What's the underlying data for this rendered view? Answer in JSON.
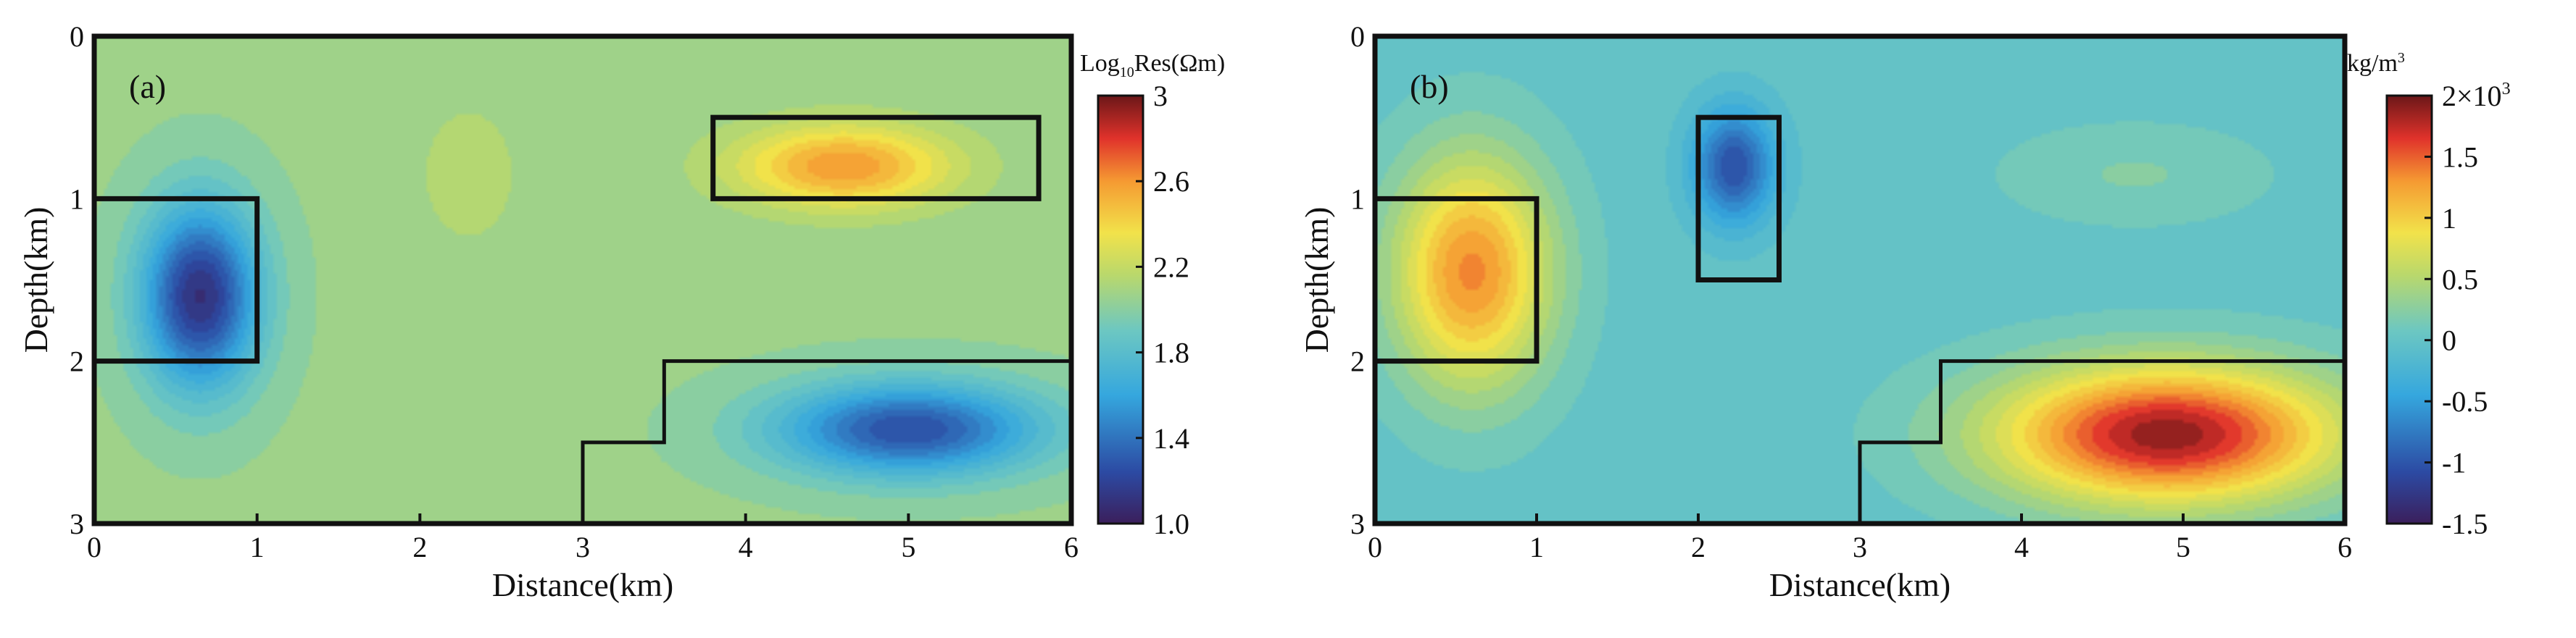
{
  "chart_data": [
    {
      "type": "heatmap",
      "panel_label": "(a)",
      "xlabel": "Distance(km)",
      "ylabel": "Depth(km)",
      "xlim": [
        0,
        6
      ],
      "ylim": [
        0,
        3
      ],
      "x_ticks": [
        0,
        1,
        2,
        3,
        4,
        5,
        6
      ],
      "x_tick_labels": [
        "0",
        "1",
        "2",
        "3",
        "4",
        "5",
        "6"
      ],
      "y_ticks": [
        0,
        1,
        2,
        3
      ],
      "y_tick_labels": [
        "0",
        "1",
        "2",
        "3"
      ],
      "y_inverted": true,
      "colorbar": {
        "title_prefix": "Log",
        "title_sub": "10",
        "title_suffix": "Res(Ωm)",
        "range": [
          1.0,
          3.0
        ],
        "ticks": [
          3,
          2.6,
          2.2,
          1.8,
          1.4,
          1.0
        ],
        "tick_labels": [
          "3",
          "2.6",
          "2.2",
          "1.8",
          "1.4",
          "1.0"
        ],
        "colormap": "jet"
      },
      "background_value": 2.05,
      "anomalies": [
        {
          "name": "conductive-body-left",
          "cx": 0.65,
          "cy": 1.6,
          "sx": 0.35,
          "sy": 0.55,
          "amplitude": -0.95
        },
        {
          "name": "resistive-body-upper",
          "cx": 4.6,
          "cy": 0.8,
          "sx": 0.65,
          "sy": 0.25,
          "amplitude": 0.55
        },
        {
          "name": "conductive-body-lower",
          "cx": 5.0,
          "cy": 2.42,
          "sx": 0.8,
          "sy": 0.28,
          "amplitude": -0.8
        },
        {
          "name": "mild-high-center",
          "cx": 2.3,
          "cy": 0.85,
          "sx": 0.35,
          "sy": 0.5,
          "amplitude": 0.1
        }
      ],
      "model_outlines": [
        {
          "name": "left-block",
          "points": [
            [
              0,
              1
            ],
            [
              1,
              1
            ],
            [
              1,
              2
            ],
            [
              0,
              2
            ]
          ],
          "closed": false
        },
        {
          "name": "upper-right-block",
          "points": [
            [
              3.8,
              0.5
            ],
            [
              5.8,
              0.5
            ],
            [
              5.8,
              1.0
            ],
            [
              3.8,
              1.0
            ]
          ],
          "closed": true
        },
        {
          "name": "stepped-body",
          "points": [
            [
              3,
              3
            ],
            [
              3,
              2.5
            ],
            [
              3.5,
              2.5
            ],
            [
              3.5,
              2.0
            ],
            [
              6,
              2.0
            ]
          ],
          "closed": false
        }
      ]
    },
    {
      "type": "heatmap",
      "panel_label": "(b)",
      "xlabel": "Distance(km)",
      "ylabel": "Depth(km)",
      "xlim": [
        0,
        6
      ],
      "ylim": [
        0,
        3
      ],
      "x_ticks": [
        0,
        1,
        2,
        3,
        4,
        5,
        6
      ],
      "x_tick_labels": [
        "0",
        "1",
        "2",
        "3",
        "4",
        "5",
        "6"
      ],
      "y_ticks": [
        0,
        1,
        2,
        3
      ],
      "y_tick_labels": [
        "0",
        "1",
        "2",
        "3"
      ],
      "y_inverted": true,
      "colorbar": {
        "unit_base": "kg/m",
        "unit_sup": "3",
        "range": [
          -1.5,
          2.0
        ],
        "ticks": [
          2,
          1.5,
          1,
          0.5,
          0,
          -0.5,
          -1,
          -1.5
        ],
        "tick_labels": [
          "2×10",
          "1.5",
          "1",
          "0.5",
          "0",
          "-0.5",
          "-1",
          "-1.5"
        ],
        "top_label_sup": "3",
        "colormap": "jet"
      },
      "background_value": 0.0,
      "anomalies": [
        {
          "name": "dense-body-left",
          "cx": 0.6,
          "cy": 1.45,
          "sx": 0.48,
          "sy": 0.7,
          "amplitude": 1.35
        },
        {
          "name": "light-body-top",
          "cx": 2.22,
          "cy": 0.8,
          "sx": 0.25,
          "sy": 0.35,
          "amplitude": -1.05
        },
        {
          "name": "dense-body-lower",
          "cx": 4.9,
          "cy": 2.45,
          "sx": 1.05,
          "sy": 0.42,
          "amplitude": 1.9
        },
        {
          "name": "mild-high-right",
          "cx": 4.7,
          "cy": 0.85,
          "sx": 0.8,
          "sy": 0.3,
          "amplitude": 0.2
        }
      ],
      "model_outlines": [
        {
          "name": "left-block",
          "points": [
            [
              0,
              1
            ],
            [
              1,
              1
            ],
            [
              1,
              2
            ],
            [
              0,
              2
            ]
          ],
          "closed": false
        },
        {
          "name": "upper-small-block",
          "points": [
            [
              2.0,
              0.5
            ],
            [
              2.5,
              0.5
            ],
            [
              2.5,
              1.5
            ],
            [
              2.0,
              1.5
            ]
          ],
          "closed": true
        },
        {
          "name": "stepped-body",
          "points": [
            [
              3,
              3
            ],
            [
              3,
              2.5
            ],
            [
              3.5,
              2.5
            ],
            [
              3.5,
              2.0
            ],
            [
              6,
              2.0
            ]
          ],
          "closed": false
        }
      ]
    }
  ]
}
